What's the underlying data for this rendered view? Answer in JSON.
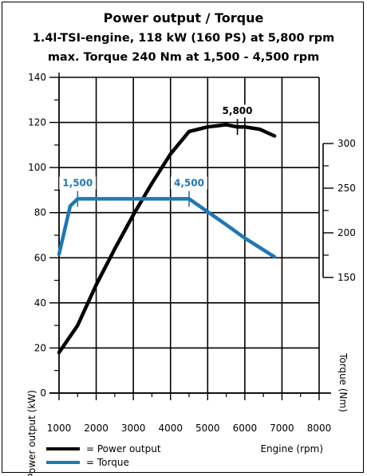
{
  "chart_data": {
    "type": "line",
    "title": "Power output / Torque",
    "subtitle_1": "1.4l-TSI-engine, 118 kW (160 PS) at 5,800 rpm",
    "subtitle_2": "max. Torque 240 Nm at 1,500 - 4,500 rpm",
    "xlabel": "Engine (rpm)",
    "ylabel_left": "Power output (kW)",
    "ylabel_right": "Torque (Nm)",
    "xlim": [
      1000,
      8000
    ],
    "ylim_left": [
      0,
      140
    ],
    "ylim_right": [
      150,
      300
    ],
    "x_ticks": [
      1000,
      2000,
      3000,
      4000,
      5000,
      6000,
      7000,
      8000
    ],
    "y_ticks_left": [
      0,
      20,
      40,
      60,
      80,
      100,
      120,
      140
    ],
    "y_ticks_right": [
      150,
      200,
      250,
      300
    ],
    "grid": true,
    "series": [
      {
        "name": "Power output",
        "axis": "left",
        "color": "#000000",
        "points": [
          [
            1000,
            18
          ],
          [
            1500,
            30
          ],
          [
            2000,
            48
          ],
          [
            2500,
            64
          ],
          [
            3000,
            79
          ],
          [
            3500,
            93
          ],
          [
            4000,
            106
          ],
          [
            4500,
            116
          ],
          [
            5000,
            118
          ],
          [
            5500,
            119
          ],
          [
            5800,
            118
          ],
          [
            6000,
            118
          ],
          [
            6400,
            117
          ],
          [
            6800,
            114
          ]
        ]
      },
      {
        "name": "Torque",
        "axis": "right",
        "color": "#1f78b4",
        "points": [
          [
            1000,
            176
          ],
          [
            1300,
            230
          ],
          [
            1500,
            238
          ],
          [
            4500,
            238
          ],
          [
            5500,
            209
          ],
          [
            6000,
            194
          ],
          [
            6800,
            173
          ]
        ]
      }
    ],
    "annotations": [
      {
        "label": "5,800",
        "x": 5800,
        "color": "#000000",
        "series": "Power output"
      },
      {
        "label": "1,500",
        "x": 1500,
        "color": "#1f78b4",
        "series": "Torque"
      },
      {
        "label": "4,500",
        "x": 4500,
        "color": "#1f78b4",
        "series": "Torque"
      }
    ],
    "legend": [
      {
        "label": "= Power output",
        "color": "#000000"
      },
      {
        "label": "= Torque",
        "color": "#1f78b4"
      }
    ],
    "legend_position": "bottom-left"
  }
}
